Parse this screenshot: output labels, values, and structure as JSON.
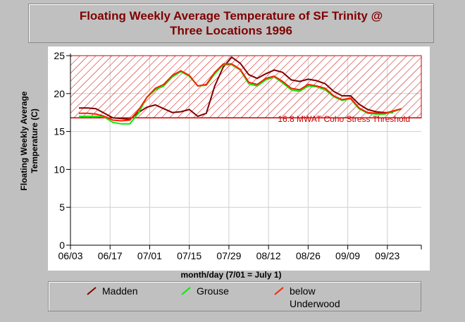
{
  "chart_data": {
    "type": "line",
    "title_lines": [
      "Floating Weekly Average Temperature of SF Trinity @",
      "Three Locations 1996"
    ],
    "ylabel_lines": [
      "Floating Weekly Average",
      "Temperature (C)"
    ],
    "xlabel": "month/day (7/01 = July 1)",
    "ylim": [
      0,
      25
    ],
    "yticks": [
      0,
      5,
      10,
      15,
      20,
      25
    ],
    "xlim": [
      "1996-06-03",
      "1996-10-05"
    ],
    "xtick_labels": [
      "06/03",
      "06/17",
      "07/01",
      "07/15",
      "07/29",
      "08/12",
      "08/26",
      "09/09",
      "09/23"
    ],
    "xtick_dates": [
      "1996-06-03",
      "1996-06-17",
      "1996-07-01",
      "1996-07-15",
      "1996-07-29",
      "1996-08-12",
      "1996-08-26",
      "1996-09-09",
      "1996-09-23"
    ],
    "grid": true,
    "threshold": {
      "value": 16.8,
      "label": "16.8 MWAT Coho Stress Threshold",
      "color": "#cc0000"
    },
    "series": [
      {
        "name": "Madden",
        "color": "#800000",
        "points": [
          [
            "1996-06-06",
            18.1
          ],
          [
            "1996-06-09",
            18.1
          ],
          [
            "1996-06-12",
            18.0
          ],
          [
            "1996-06-15",
            17.4
          ],
          [
            "1996-06-18",
            16.8
          ],
          [
            "1996-06-21",
            16.7
          ],
          [
            "1996-06-24",
            16.6
          ],
          [
            "1996-06-27",
            17.5
          ],
          [
            "1996-06-30",
            18.2
          ],
          [
            "1996-07-03",
            18.5
          ],
          [
            "1996-07-06",
            18.0
          ],
          [
            "1996-07-09",
            17.5
          ],
          [
            "1996-07-12",
            17.6
          ],
          [
            "1996-07-15",
            17.9
          ],
          [
            "1996-07-18",
            17.0
          ],
          [
            "1996-07-21",
            17.4
          ],
          [
            "1996-07-24",
            21.0
          ],
          [
            "1996-07-27",
            23.5
          ],
          [
            "1996-07-30",
            24.8
          ],
          [
            "1996-08-02",
            24.0
          ],
          [
            "1996-08-05",
            22.5
          ],
          [
            "1996-08-08",
            22.0
          ],
          [
            "1996-08-11",
            22.6
          ],
          [
            "1996-08-14",
            23.1
          ],
          [
            "1996-08-17",
            22.8
          ],
          [
            "1996-08-20",
            21.8
          ],
          [
            "1996-08-23",
            21.6
          ],
          [
            "1996-08-26",
            21.9
          ],
          [
            "1996-08-29",
            21.7
          ],
          [
            "1996-09-01",
            21.3
          ],
          [
            "1996-09-04",
            20.3
          ],
          [
            "1996-09-07",
            19.7
          ],
          [
            "1996-09-10",
            19.7
          ],
          [
            "1996-09-13",
            18.6
          ],
          [
            "1996-09-16",
            17.9
          ],
          [
            "1996-09-19",
            17.6
          ],
          [
            "1996-09-22",
            17.5
          ],
          [
            "1996-09-25",
            17.5
          ]
        ]
      },
      {
        "name": "Grouse",
        "color": "#00ee00",
        "points": [
          [
            "1996-06-06",
            17.0
          ],
          [
            "1996-06-09",
            17.0
          ],
          [
            "1996-06-12",
            17.0
          ],
          [
            "1996-06-15",
            16.9
          ],
          [
            "1996-06-18",
            16.2
          ],
          [
            "1996-06-21",
            16.0
          ],
          [
            "1996-06-24",
            16.0
          ],
          [
            "1996-06-27",
            17.4
          ],
          [
            "1996-06-30",
            19.5
          ],
          [
            "1996-07-03",
            20.5
          ],
          [
            "1996-07-06",
            21.0
          ],
          [
            "1996-07-09",
            22.2
          ],
          [
            "1996-07-12",
            22.9
          ],
          [
            "1996-07-15",
            22.3
          ],
          [
            "1996-07-18",
            21.0
          ],
          [
            "1996-07-21",
            21.1
          ],
          [
            "1996-07-24",
            22.6
          ],
          [
            "1996-07-27",
            23.8
          ],
          [
            "1996-07-30",
            23.8
          ],
          [
            "1996-08-02",
            23.1
          ],
          [
            "1996-08-05",
            21.3
          ],
          [
            "1996-08-08",
            21.0
          ],
          [
            "1996-08-11",
            21.8
          ],
          [
            "1996-08-14",
            22.2
          ],
          [
            "1996-08-17",
            21.4
          ],
          [
            "1996-08-20",
            20.5
          ],
          [
            "1996-08-23",
            20.3
          ],
          [
            "1996-08-26",
            21.0
          ],
          [
            "1996-08-29",
            20.9
          ],
          [
            "1996-09-01",
            20.5
          ],
          [
            "1996-09-04",
            19.6
          ],
          [
            "1996-09-07",
            19.1
          ],
          [
            "1996-09-10",
            19.3
          ],
          [
            "1996-09-13",
            18.0
          ],
          [
            "1996-09-16",
            17.4
          ],
          [
            "1996-09-19",
            17.3
          ],
          [
            "1996-09-22",
            17.3
          ],
          [
            "1996-09-25",
            17.6
          ],
          [
            "1996-09-28",
            18.0
          ]
        ]
      },
      {
        "name": "below Underwood",
        "color": "#ff2000",
        "points": [
          [
            "1996-06-06",
            17.4
          ],
          [
            "1996-06-09",
            17.4
          ],
          [
            "1996-06-12",
            17.3
          ],
          [
            "1996-06-15",
            17.0
          ],
          [
            "1996-06-18",
            16.5
          ],
          [
            "1996-06-21",
            16.4
          ],
          [
            "1996-06-24",
            16.5
          ],
          [
            "1996-06-27",
            17.8
          ],
          [
            "1996-06-30",
            19.5
          ],
          [
            "1996-07-03",
            20.7
          ],
          [
            "1996-07-06",
            21.2
          ],
          [
            "1996-07-09",
            22.4
          ],
          [
            "1996-07-12",
            23.0
          ],
          [
            "1996-07-15",
            22.4
          ],
          [
            "1996-07-18",
            21.0
          ],
          [
            "1996-07-21",
            21.2
          ],
          [
            "1996-07-24",
            22.8
          ],
          [
            "1996-07-27",
            23.9
          ],
          [
            "1996-07-30",
            23.9
          ],
          [
            "1996-08-02",
            23.2
          ],
          [
            "1996-08-05",
            21.5
          ],
          [
            "1996-08-08",
            21.2
          ],
          [
            "1996-08-11",
            22.0
          ],
          [
            "1996-08-14",
            22.3
          ],
          [
            "1996-08-17",
            21.6
          ],
          [
            "1996-08-20",
            20.7
          ],
          [
            "1996-08-23",
            20.5
          ],
          [
            "1996-08-26",
            21.2
          ],
          [
            "1996-08-29",
            21.0
          ],
          [
            "1996-09-01",
            20.7
          ],
          [
            "1996-09-04",
            19.7
          ],
          [
            "1996-09-07",
            19.2
          ],
          [
            "1996-09-10",
            19.4
          ],
          [
            "1996-09-13",
            18.1
          ],
          [
            "1996-09-16",
            17.5
          ],
          [
            "1996-09-19",
            17.4
          ],
          [
            "1996-09-22",
            17.4
          ],
          [
            "1996-09-25",
            17.7
          ],
          [
            "1996-09-28",
            18.0
          ]
        ]
      }
    ]
  },
  "legend": {
    "items": [
      {
        "label": "Madden",
        "color": "#800000"
      },
      {
        "label": "Grouse",
        "color": "#00ee00"
      },
      {
        "label": "below Underwood",
        "color": "#ff2000"
      }
    ]
  }
}
